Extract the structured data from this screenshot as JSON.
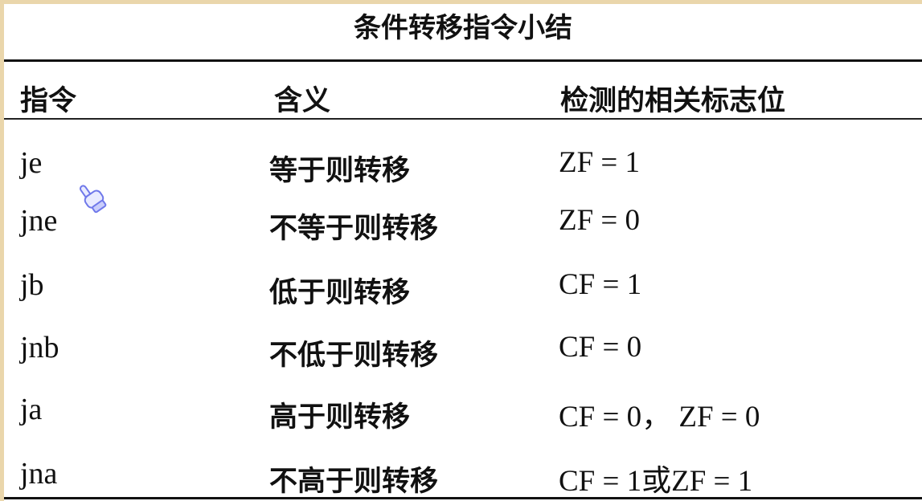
{
  "title": "条件转移指令小结",
  "headers": [
    "指令",
    "含义",
    "检测的相关标志位"
  ],
  "rows": [
    {
      "instruction": "je",
      "meaning": "等于则转移",
      "flags": "ZF = 1"
    },
    {
      "instruction": "jne",
      "meaning": "不等于则转移",
      "flags": "ZF = 0"
    },
    {
      "instruction": "jb",
      "meaning": "低于则转移",
      "flags": "CF = 1"
    },
    {
      "instruction": "jnb",
      "meaning": "不低于则转移",
      "flags": "CF = 0"
    },
    {
      "instruction": "ja",
      "meaning": "高于则转移",
      "flags": "CF = 0，  ZF = 0"
    },
    {
      "instruction": "jna",
      "meaning": "不高于则转移",
      "flags": "CF = 1或ZF = 1"
    }
  ],
  "cursor_icon": "hand-pointer-icon",
  "colors": {
    "frame": "#ead6ab",
    "cursor": "#7d86f0"
  }
}
